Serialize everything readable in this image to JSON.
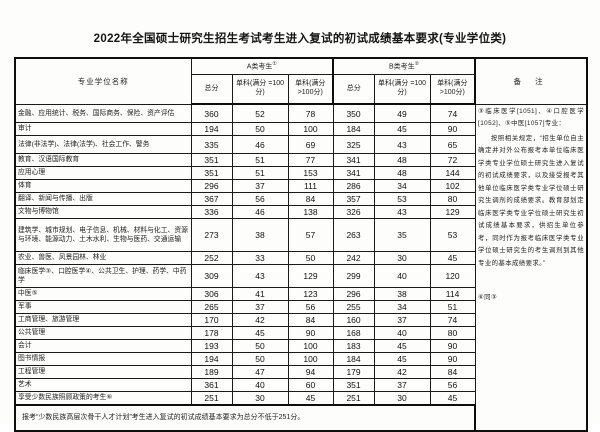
{
  "title": "2022年全国硕士研究生招生考试考生进入复试的初试成绩基本要求(专业学位类)",
  "table": {
    "name_header": "专业学位名称",
    "group_a": {
      "label": "A类考生",
      "sup": "①"
    },
    "group_b": {
      "label": "B类考生",
      "sup": "②"
    },
    "sub_headers": [
      "总分",
      "单科(满分\n=100分)",
      "单科(满分\n>100分)"
    ],
    "remarks_header": "备 注",
    "rows": [
      {
        "name": "金融、应用统计、税务、国际商务、保险、资产评估",
        "a": [
          360,
          52,
          78
        ],
        "b": [
          350,
          49,
          74
        ]
      },
      {
        "name": "审计",
        "a": [
          194,
          50,
          100
        ],
        "b": [
          184,
          45,
          90
        ]
      },
      {
        "name": "法律(非法学)、法律(法学)、社会工作、警务",
        "a": [
          335,
          46,
          69
        ],
        "b": [
          325,
          43,
          65
        ]
      },
      {
        "name": "教育、汉语国际教育",
        "a": [
          351,
          51,
          77
        ],
        "b": [
          341,
          48,
          72
        ]
      },
      {
        "name": "应用心理",
        "a": [
          351,
          51,
          153
        ],
        "b": [
          341,
          48,
          144
        ]
      },
      {
        "name": "体育",
        "a": [
          296,
          37,
          111
        ],
        "b": [
          286,
          34,
          102
        ]
      },
      {
        "name": "翻译、新闻与传播、出版",
        "a": [
          367,
          56,
          84
        ],
        "b": [
          357,
          53,
          80
        ]
      },
      {
        "name": "文物与博物馆",
        "a": [
          336,
          46,
          138
        ],
        "b": [
          326,
          43,
          129
        ]
      },
      {
        "name": "建筑学、城市规划、电子信息、机械、材料与化工、资源与环境、能源动力、土木水利、生物与医药、交通运输",
        "a": [
          273,
          38,
          57
        ],
        "b": [
          263,
          35,
          53
        ]
      },
      {
        "name": "农业、兽医、风景园林、林业",
        "a": [
          252,
          33,
          50
        ],
        "b": [
          242,
          30,
          45
        ]
      },
      {
        "name": "临床医学③、口腔医学④、公共卫生、护理、药学、中药学",
        "a": [
          309,
          43,
          129
        ],
        "b": [
          299,
          40,
          120
        ]
      },
      {
        "name": "中医⑤",
        "a": [
          306,
          41,
          123
        ],
        "b": [
          296,
          38,
          114
        ]
      },
      {
        "name": "军事",
        "a": [
          265,
          37,
          56
        ],
        "b": [
          255,
          34,
          51
        ]
      },
      {
        "name": "工商管理、旅游管理",
        "a": [
          170,
          42,
          84
        ],
        "b": [
          160,
          37,
          74
        ]
      },
      {
        "name": "公共管理",
        "a": [
          178,
          45,
          90
        ],
        "b": [
          168,
          40,
          80
        ]
      },
      {
        "name": "会计",
        "a": [
          193,
          50,
          100
        ],
        "b": [
          183,
          45,
          90
        ]
      },
      {
        "name": "图书情报",
        "a": [
          194,
          50,
          100
        ],
        "b": [
          184,
          45,
          90
        ]
      },
      {
        "name": "工程管理",
        "a": [
          189,
          47,
          94
        ],
        "b": [
          179,
          42,
          84
        ]
      },
      {
        "name": "艺术",
        "a": [
          361,
          40,
          60
        ],
        "b": [
          351,
          37,
          56
        ]
      },
      {
        "name": "享受少数民族照顾政策的考生⑥",
        "a": [
          251,
          30,
          45
        ],
        "b": [
          251,
          30,
          45
        ]
      }
    ],
    "remarks": [
      "③临床医学[1051]、④口腔医学[1052]、⑤中医[1057]专业：",
      "按照相关规定，“招生单位自主确定并对外公布报考本单位临床医学类专业学位硕士研究生进入复试的初试成绩要求，以及接受报考其他单位临床医学类专业学位硕士研究生调剂的成绩要求。教育部划定临床医学类专业学位硕士研究生初试成绩基本要求，供招生单位参考，同时作为报考临床医学类专业学位硕士研究生的考生调剂到其他专业的基本成绩要求。”",
      "⑥同③"
    ],
    "footnote": "报考“少数民族高层次骨干人才计划”考生进入复试的初试成绩基本要求为总分不低于251分。"
  }
}
